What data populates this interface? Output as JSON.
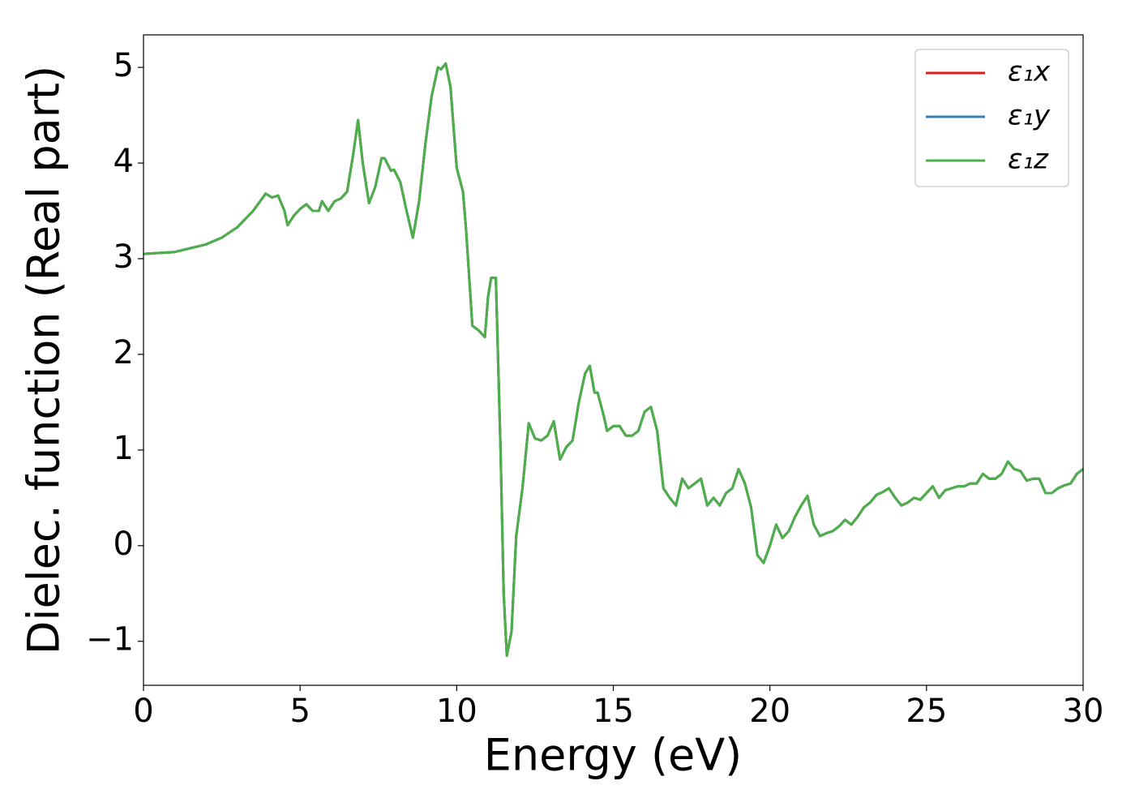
{
  "chart_data": {
    "type": "line",
    "xlabel": "Energy (eV)",
    "ylabel": "Dielec. function (Real part)",
    "x": [
      0,
      1,
      2,
      2.5,
      3,
      3.5,
      3.9,
      4.1,
      4.3,
      4.5,
      4.6,
      4.8,
      5.0,
      5.2,
      5.4,
      5.6,
      5.7,
      5.9,
      6.1,
      6.3,
      6.5,
      6.7,
      6.85,
      7.0,
      7.2,
      7.4,
      7.6,
      7.7,
      7.9,
      8.0,
      8.2,
      8.4,
      8.6,
      8.8,
      9.0,
      9.2,
      9.4,
      9.5,
      9.65,
      9.8,
      10.0,
      10.2,
      10.3,
      10.5,
      10.7,
      10.9,
      11.0,
      11.1,
      11.25,
      11.4,
      11.5,
      11.6,
      11.75,
      11.9,
      12.1,
      12.3,
      12.5,
      12.7,
      12.9,
      13.1,
      13.3,
      13.5,
      13.7,
      13.9,
      14.1,
      14.25,
      14.4,
      14.5,
      14.7,
      14.8,
      15.0,
      15.2,
      15.4,
      15.6,
      15.8,
      16.0,
      16.2,
      16.4,
      16.6,
      16.8,
      17.0,
      17.2,
      17.4,
      17.6,
      17.8,
      18.0,
      18.2,
      18.4,
      18.6,
      18.8,
      19.0,
      19.2,
      19.4,
      19.6,
      19.8,
      20.0,
      20.2,
      20.4,
      20.6,
      20.8,
      21.0,
      21.2,
      21.4,
      21.6,
      21.8,
      22.0,
      22.2,
      22.4,
      22.6,
      22.8,
      23.0,
      23.2,
      23.4,
      23.6,
      23.8,
      24.0,
      24.2,
      24.4,
      24.6,
      24.8,
      25.0,
      25.2,
      25.4,
      25.6,
      25.8,
      26.0,
      26.2,
      26.4,
      26.6,
      26.8,
      27.0,
      27.2,
      27.4,
      27.6,
      27.8,
      28.0,
      28.2,
      28.4,
      28.6,
      28.8,
      29.0,
      29.2,
      29.4,
      29.6,
      29.8,
      30.0
    ],
    "series": [
      {
        "name": "ε₁x",
        "color": "#e41a1c",
        "values": [
          3.05,
          3.07,
          3.15,
          3.22,
          3.33,
          3.5,
          3.68,
          3.64,
          3.66,
          3.5,
          3.35,
          3.45,
          3.52,
          3.57,
          3.5,
          3.5,
          3.6,
          3.5,
          3.6,
          3.63,
          3.7,
          4.1,
          4.45,
          4.0,
          3.58,
          3.75,
          4.05,
          4.05,
          3.92,
          3.93,
          3.8,
          3.5,
          3.22,
          3.6,
          4.2,
          4.7,
          5.0,
          4.98,
          5.04,
          4.8,
          3.95,
          3.7,
          3.3,
          2.3,
          2.25,
          2.18,
          2.6,
          2.8,
          2.8,
          1.0,
          -0.5,
          -1.15,
          -0.9,
          0.1,
          0.6,
          1.28,
          1.12,
          1.1,
          1.15,
          1.3,
          0.9,
          1.03,
          1.1,
          1.5,
          1.8,
          1.88,
          1.6,
          1.6,
          1.35,
          1.2,
          1.25,
          1.25,
          1.15,
          1.15,
          1.2,
          1.4,
          1.45,
          1.2,
          0.6,
          0.5,
          0.42,
          0.7,
          0.6,
          0.65,
          0.7,
          0.42,
          0.5,
          0.42,
          0.55,
          0.6,
          0.8,
          0.65,
          0.4,
          -0.1,
          -0.18,
          0.0,
          0.22,
          0.08,
          0.15,
          0.3,
          0.42,
          0.52,
          0.22,
          0.1,
          0.13,
          0.15,
          0.2,
          0.27,
          0.22,
          0.3,
          0.4,
          0.45,
          0.53,
          0.56,
          0.6,
          0.5,
          0.42,
          0.45,
          0.5,
          0.48,
          0.55,
          0.62,
          0.5,
          0.58,
          0.6,
          0.62,
          0.62,
          0.65,
          0.65,
          0.75,
          0.7,
          0.7,
          0.75,
          0.88,
          0.8,
          0.78,
          0.68,
          0.7,
          0.7,
          0.55,
          0.55,
          0.6,
          0.63,
          0.65,
          0.75,
          0.8
        ]
      },
      {
        "name": "ε₁y",
        "color": "#377eb8",
        "values": [
          3.05,
          3.07,
          3.15,
          3.22,
          3.33,
          3.5,
          3.68,
          3.64,
          3.66,
          3.5,
          3.35,
          3.45,
          3.52,
          3.57,
          3.5,
          3.5,
          3.6,
          3.5,
          3.6,
          3.63,
          3.7,
          4.1,
          4.45,
          4.0,
          3.58,
          3.75,
          4.05,
          4.05,
          3.92,
          3.93,
          3.8,
          3.5,
          3.22,
          3.6,
          4.2,
          4.7,
          5.0,
          4.98,
          5.04,
          4.8,
          3.95,
          3.7,
          3.3,
          2.3,
          2.25,
          2.18,
          2.6,
          2.8,
          2.8,
          1.0,
          -0.5,
          -1.15,
          -0.9,
          0.1,
          0.6,
          1.28,
          1.12,
          1.1,
          1.15,
          1.3,
          0.9,
          1.03,
          1.1,
          1.5,
          1.8,
          1.88,
          1.6,
          1.6,
          1.35,
          1.2,
          1.25,
          1.25,
          1.15,
          1.15,
          1.2,
          1.4,
          1.45,
          1.2,
          0.6,
          0.5,
          0.42,
          0.7,
          0.6,
          0.65,
          0.7,
          0.42,
          0.5,
          0.42,
          0.55,
          0.6,
          0.8,
          0.65,
          0.4,
          -0.1,
          -0.18,
          0.0,
          0.22,
          0.08,
          0.15,
          0.3,
          0.42,
          0.52,
          0.22,
          0.1,
          0.13,
          0.15,
          0.2,
          0.27,
          0.22,
          0.3,
          0.4,
          0.45,
          0.53,
          0.56,
          0.6,
          0.5,
          0.42,
          0.45,
          0.5,
          0.48,
          0.55,
          0.62,
          0.5,
          0.58,
          0.6,
          0.62,
          0.62,
          0.65,
          0.65,
          0.75,
          0.7,
          0.7,
          0.75,
          0.88,
          0.8,
          0.78,
          0.68,
          0.7,
          0.7,
          0.55,
          0.55,
          0.6,
          0.63,
          0.65,
          0.75,
          0.8
        ]
      },
      {
        "name": "ε₁z",
        "color": "#4daf4a",
        "values": [
          3.05,
          3.07,
          3.15,
          3.22,
          3.33,
          3.5,
          3.68,
          3.64,
          3.66,
          3.5,
          3.35,
          3.45,
          3.52,
          3.57,
          3.5,
          3.5,
          3.6,
          3.5,
          3.6,
          3.63,
          3.7,
          4.1,
          4.45,
          4.0,
          3.58,
          3.75,
          4.05,
          4.05,
          3.92,
          3.93,
          3.8,
          3.5,
          3.22,
          3.6,
          4.2,
          4.7,
          5.0,
          4.98,
          5.04,
          4.8,
          3.95,
          3.7,
          3.3,
          2.3,
          2.25,
          2.18,
          2.6,
          2.8,
          2.8,
          1.0,
          -0.5,
          -1.15,
          -0.9,
          0.1,
          0.6,
          1.28,
          1.12,
          1.1,
          1.15,
          1.3,
          0.9,
          1.03,
          1.1,
          1.5,
          1.8,
          1.88,
          1.6,
          1.6,
          1.35,
          1.2,
          1.25,
          1.25,
          1.15,
          1.15,
          1.2,
          1.4,
          1.45,
          1.2,
          0.6,
          0.5,
          0.42,
          0.7,
          0.6,
          0.65,
          0.7,
          0.42,
          0.5,
          0.42,
          0.55,
          0.6,
          0.8,
          0.65,
          0.4,
          -0.1,
          -0.18,
          0.0,
          0.22,
          0.08,
          0.15,
          0.3,
          0.42,
          0.52,
          0.22,
          0.1,
          0.13,
          0.15,
          0.2,
          0.27,
          0.22,
          0.3,
          0.4,
          0.45,
          0.53,
          0.56,
          0.6,
          0.5,
          0.42,
          0.45,
          0.5,
          0.48,
          0.55,
          0.62,
          0.5,
          0.58,
          0.6,
          0.62,
          0.62,
          0.65,
          0.65,
          0.75,
          0.7,
          0.7,
          0.75,
          0.88,
          0.8,
          0.78,
          0.68,
          0.7,
          0.7,
          0.55,
          0.55,
          0.6,
          0.63,
          0.65,
          0.75,
          0.8
        ]
      }
    ],
    "xlim": [
      0,
      30
    ],
    "xticks": [
      0,
      5,
      10,
      15,
      20,
      25,
      30
    ],
    "ylim": [
      -1.46,
      5.34
    ],
    "yticks": [
      {
        "value": -1,
        "label": "−1"
      },
      0,
      1,
      2,
      3,
      4,
      5
    ],
    "legend": "upper right",
    "grid": false
  }
}
